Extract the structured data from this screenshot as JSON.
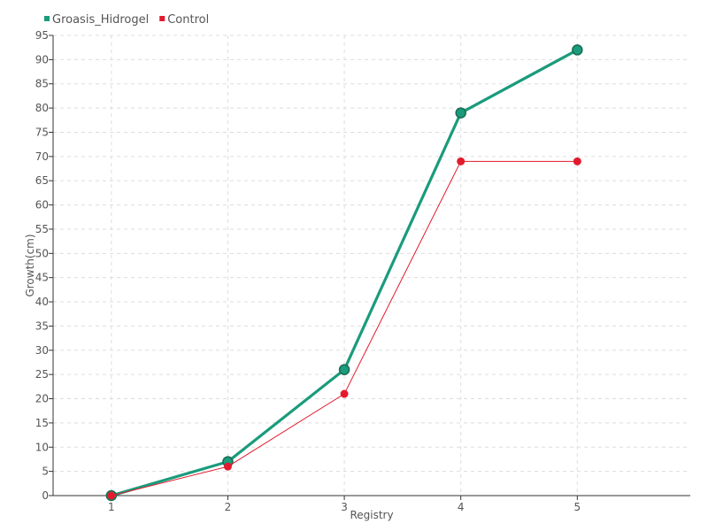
{
  "chart_data": {
    "type": "line",
    "title": "",
    "xlabel": "Registry",
    "ylabel": "Growth(cm)",
    "x": [
      1,
      2,
      3,
      4,
      5
    ],
    "x_tick_labels": [
      "1",
      "2",
      "3",
      "4",
      "5"
    ],
    "ylim": [
      0,
      95
    ],
    "y_ticks": [
      0,
      5,
      10,
      15,
      20,
      25,
      30,
      35,
      40,
      45,
      50,
      55,
      60,
      65,
      70,
      75,
      80,
      85,
      90,
      95
    ],
    "grid": true,
    "legend_position": "top-left",
    "series": [
      {
        "name": "Groasis_Hidrogel",
        "color": "#1a9b7c",
        "values": [
          0,
          7,
          26,
          79,
          92
        ]
      },
      {
        "name": "Control",
        "color": "#e31a2d",
        "values": [
          0,
          6,
          21,
          69,
          69
        ]
      }
    ]
  }
}
